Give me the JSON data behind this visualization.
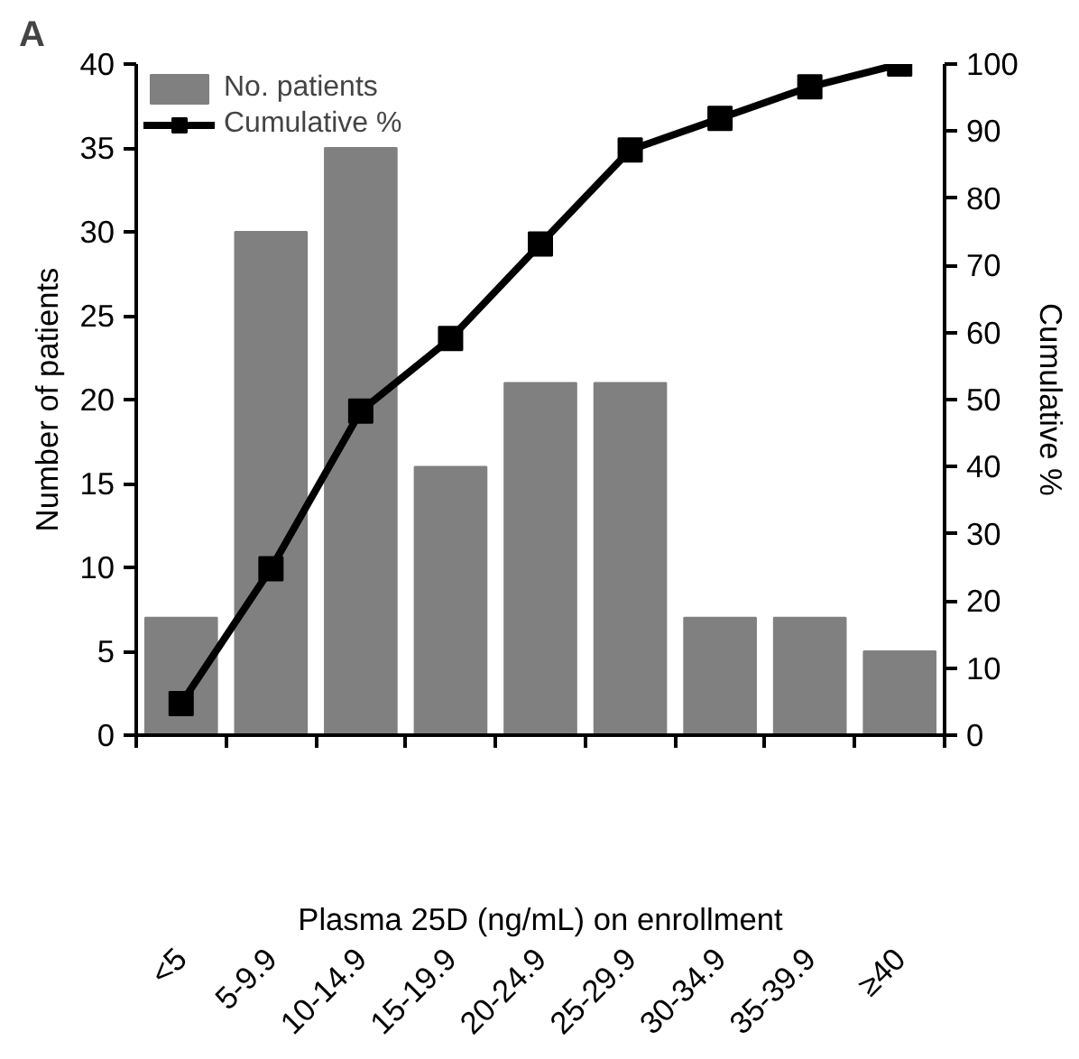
{
  "chart_data": {
    "type": "bar",
    "categories": [
      "<5",
      "5-9.9",
      "10-14.9",
      "15-19.9",
      "20-24.9",
      "25-29.9",
      "30-34.9",
      "35-39.9",
      "≥40"
    ],
    "xlabel": "Plasma 25D (ng/mL) on enrollment",
    "ylabel": "Number of patients",
    "y2label": "Cumulative %",
    "series": [
      {
        "name": "No. patients",
        "color": "#808080",
        "values": [
          7,
          30,
          35,
          16,
          21,
          21,
          7,
          7,
          5
        ]
      },
      {
        "name": "Cumulative %",
        "type": "line",
        "axis": "y2",
        "color": "#000000",
        "marker": "square",
        "values": [
          4.7,
          24.8,
          48.3,
          59.1,
          73.2,
          87.2,
          91.9,
          96.6,
          100
        ]
      }
    ],
    "ylim": [
      0,
      40
    ],
    "yticks": [
      0,
      5,
      10,
      15,
      20,
      25,
      30,
      35,
      40
    ],
    "y2lim": [
      0,
      100
    ],
    "y2ticks": [
      0,
      10,
      20,
      30,
      40,
      50,
      60,
      70,
      80,
      90,
      100
    ],
    "grid": false,
    "legend": "top left",
    "annotations": [
      "A"
    ]
  }
}
